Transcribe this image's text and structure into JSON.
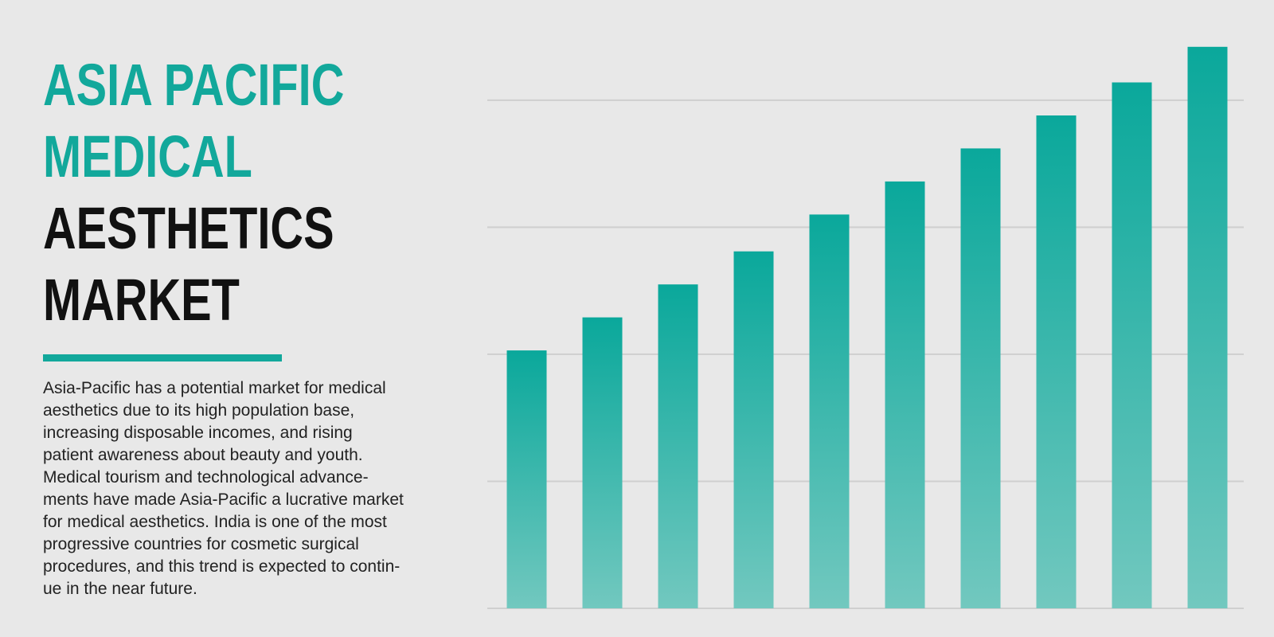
{
  "title": {
    "lines": [
      {
        "text": "ASIA PACIFIC",
        "style": "accent"
      },
      {
        "text": "MEDICAL",
        "style": "accent"
      },
      {
        "text": "AESTHETICS",
        "style": "dark"
      },
      {
        "text": "MARKET",
        "style": "dark"
      }
    ]
  },
  "description": {
    "lines": [
      "Asia-Pacific has a potential market for medical",
      "aesthetics due to its high population base,",
      "increasing disposable incomes, and rising",
      "patient awareness about beauty and youth.",
      "Medical tourism and technological advance-",
      "ments have made Asia-Pacific a lucrative market",
      "for medical aesthetics. India is one of the most",
      "progressive countries for cosmetic surgical",
      "procedures, and this trend is expected to contin-",
      "ue in the near future."
    ]
  },
  "colors": {
    "accent": "#12a89b",
    "bar_top": "#0aa89b",
    "bar_bottom": "#72c8bf",
    "grid": "#cfcfcf",
    "text_dark": "#111111",
    "background": "#e8e8e8"
  },
  "chart_data": {
    "type": "bar",
    "categories": [
      "",
      "",
      "",
      "",
      "",
      "",
      "",
      "",
      "",
      ""
    ],
    "values": [
      2.03,
      2.29,
      2.55,
      2.81,
      3.1,
      3.36,
      3.62,
      3.88,
      4.14,
      4.42
    ],
    "ylim": [
      0,
      4.4
    ],
    "gridlines": [
      1,
      2,
      3,
      4
    ],
    "grid": true,
    "legend": "none",
    "axis_labels_visible": false
  }
}
